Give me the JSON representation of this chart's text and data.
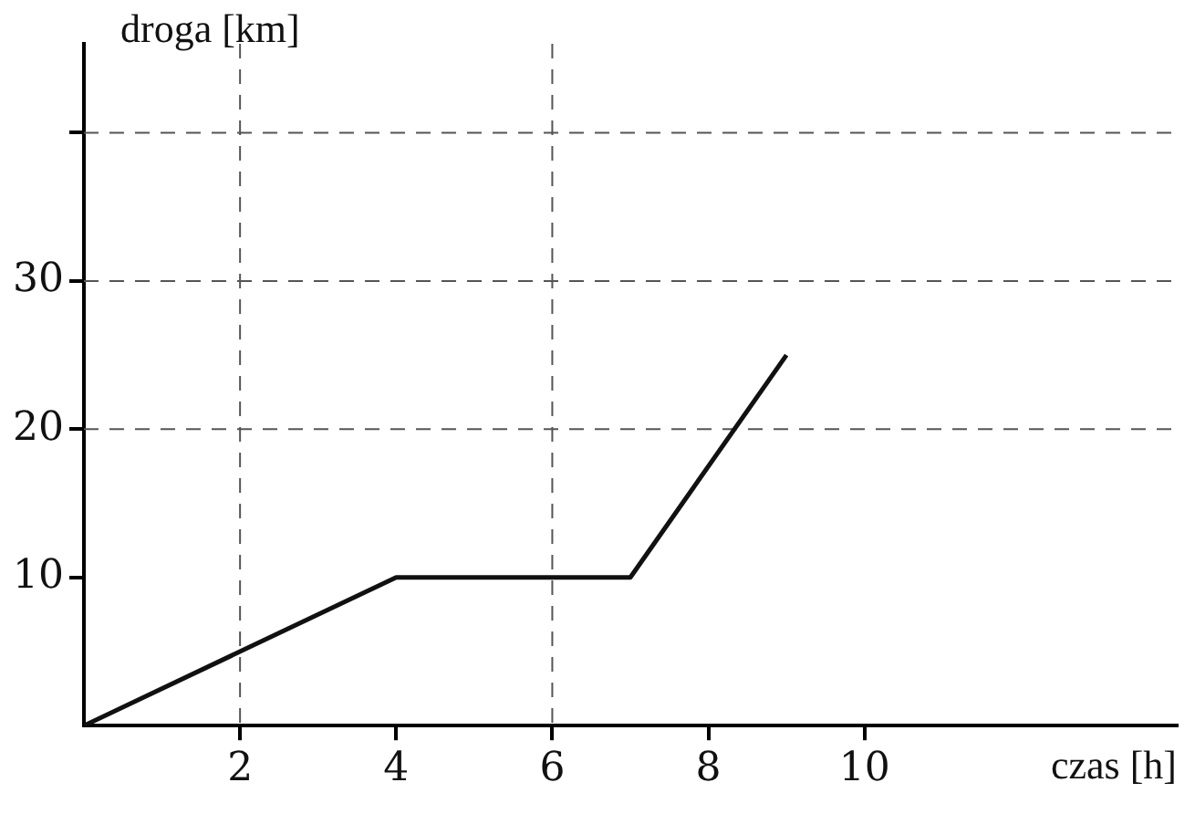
{
  "chart_data": {
    "type": "line",
    "xlabel": "czas [h]",
    "ylabel": "droga [km]",
    "x": [
      0,
      4,
      7,
      9
    ],
    "series": [
      {
        "color": "#111111",
        "values": [
          0,
          10,
          10,
          25
        ]
      }
    ],
    "xlim": [
      0,
      14
    ],
    "xticks": [
      2,
      4,
      6,
      8,
      10
    ],
    "ylim": [
      0,
      46
    ],
    "yticks": [
      10,
      20,
      30,
      {
        "value": 40,
        "label": null
      }
    ],
    "ref_lines": [
      {
        "axis": "y",
        "value": 20,
        "line_style": "dashed",
        "color": "#555555"
      },
      {
        "axis": "y",
        "value": 30,
        "line_style": "dashed",
        "color": "#555555"
      },
      {
        "axis": "y",
        "value": 40,
        "line_style": "dashed",
        "color": "#555555"
      },
      {
        "axis": "x",
        "value": 2,
        "line_style": "dashed",
        "color": "#555555"
      },
      {
        "axis": "x",
        "value": 6,
        "line_style": "dashed",
        "color": "#555555"
      }
    ],
    "grid": false,
    "legend": false,
    "marker": "none",
    "line_style": "solid"
  }
}
